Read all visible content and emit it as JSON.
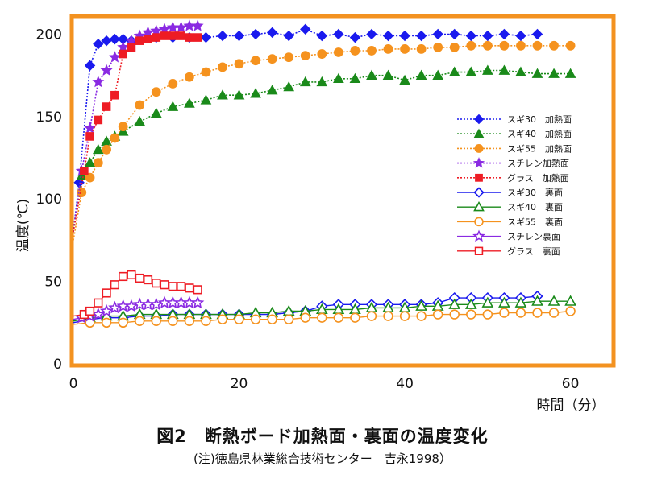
{
  "caption": {
    "title": "図2　断熱ボード加熱面・裏面の温度変化",
    "note": "(注)徳島県林業総合技術センター　吉永1998）"
  },
  "chart_data": {
    "type": "line",
    "xlabel": "時間（分）",
    "ylabel": "温度(℃)",
    "xlim": [
      0,
      65
    ],
    "ylim": [
      0,
      210
    ],
    "xticks": [
      0,
      20,
      40,
      60
    ],
    "yticks": [
      0,
      50,
      100,
      150,
      200
    ],
    "grid": false,
    "legend_position": "right",
    "series": [
      {
        "name": "スギ30　加熱面",
        "color": "#1a1aee",
        "marker": "diamond",
        "filled": true,
        "line": "dotted",
        "x": [
          0,
          0.7,
          2,
          3,
          4,
          5,
          6,
          7,
          8,
          10,
          12,
          14,
          16,
          18,
          20,
          22,
          24,
          26,
          28,
          30,
          32,
          34,
          36,
          38,
          40,
          42,
          44,
          46,
          48,
          50,
          52,
          54,
          56
        ],
        "y": [
          80,
          110,
          181,
          194,
          196,
          197,
          197,
          196,
          197,
          198,
          198,
          198,
          198,
          199,
          199,
          200,
          201,
          199,
          203,
          199,
          200,
          198,
          200,
          199,
          199,
          199,
          200,
          200,
          199,
          199,
          200,
          199,
          200
        ]
      },
      {
        "name": "スギ40　加熱面",
        "color": "#1a8a1a",
        "marker": "triangle",
        "filled": true,
        "line": "dotted",
        "x": [
          0,
          1,
          2,
          3,
          4,
          5,
          6,
          8,
          10,
          12,
          14,
          16,
          18,
          20,
          22,
          24,
          26,
          28,
          30,
          32,
          34,
          36,
          38,
          40,
          42,
          44,
          46,
          48,
          50,
          52,
          54,
          56,
          58,
          60
        ],
        "y": [
          80,
          114,
          122,
          130,
          135,
          138,
          141,
          147,
          152,
          156,
          158,
          160,
          163,
          163,
          164,
          166,
          168,
          171,
          171,
          173,
          173,
          175,
          175,
          172,
          175,
          175,
          177,
          177,
          178,
          178,
          177,
          176,
          176,
          176
        ]
      },
      {
        "name": "スギ55　加熱面",
        "color": "#f5921e",
        "marker": "circle",
        "filled": true,
        "line": "dotted",
        "x": [
          0,
          1,
          2,
          3,
          4,
          5,
          6,
          8,
          10,
          12,
          14,
          16,
          18,
          20,
          22,
          24,
          26,
          28,
          30,
          32,
          34,
          36,
          38,
          40,
          42,
          44,
          46,
          48,
          50,
          52,
          54,
          56,
          58,
          60
        ],
        "y": [
          75,
          104,
          113,
          122,
          130,
          137,
          144,
          157,
          165,
          170,
          174,
          177,
          180,
          182,
          184,
          185,
          186,
          187,
          188,
          189,
          190,
          190,
          191,
          191,
          191,
          192,
          192,
          193,
          193,
          193,
          193,
          193,
          193,
          193
        ]
      },
      {
        "name": "スチレン加熱面",
        "color": "#8a2ae2",
        "marker": "star",
        "filled": true,
        "line": "dotted",
        "x": [
          0,
          1,
          2,
          3,
          4,
          5,
          6,
          7,
          8,
          9,
          10,
          11,
          12,
          13,
          14,
          15
        ],
        "y": [
          80,
          117,
          143,
          171,
          178,
          186,
          192,
          196,
          199,
          201,
          202,
          203,
          204,
          204,
          205,
          205
        ]
      },
      {
        "name": "グラス　加熱面",
        "color": "#ee1c24",
        "marker": "square",
        "filled": true,
        "line": "dotted",
        "x": [
          0,
          1.3,
          2,
          3,
          4,
          5,
          6,
          7,
          8,
          9,
          10,
          11,
          12,
          13,
          14,
          15
        ],
        "y": [
          80,
          117,
          138,
          148,
          156,
          163,
          188,
          192,
          196,
          197,
          198,
          199,
          199,
          199,
          198,
          198
        ]
      },
      {
        "name": "スギ30　裏面",
        "color": "#1a1aee",
        "marker": "diamond",
        "filled": false,
        "line": "solid",
        "x": [
          0,
          2,
          4,
          6,
          8,
          10,
          12,
          14,
          16,
          18,
          20,
          22,
          24,
          26,
          28,
          30,
          32,
          34,
          36,
          38,
          40,
          42,
          44,
          46,
          48,
          50,
          52,
          54,
          56
        ],
        "y": [
          25,
          27,
          28,
          28,
          29,
          29,
          30,
          30,
          30,
          30,
          30,
          30,
          30,
          31,
          32,
          35,
          36,
          36,
          36,
          36,
          36,
          36,
          37,
          40,
          40,
          40,
          40,
          40,
          41
        ]
      },
      {
        "name": "スギ40　裏面",
        "color": "#1a8a1a",
        "marker": "triangle",
        "filled": false,
        "line": "solid",
        "x": [
          0,
          2,
          4,
          6,
          8,
          10,
          12,
          14,
          16,
          18,
          20,
          22,
          24,
          26,
          28,
          30,
          32,
          34,
          36,
          38,
          40,
          42,
          44,
          46,
          48,
          50,
          52,
          54,
          56,
          58,
          60
        ],
        "y": [
          26,
          28,
          29,
          29,
          30,
          30,
          30,
          30,
          30,
          30,
          30,
          31,
          31,
          32,
          32,
          33,
          33,
          33,
          34,
          34,
          34,
          35,
          35,
          36,
          36,
          37,
          37,
          37,
          38,
          38,
          38
        ]
      },
      {
        "name": "スギ55　裏面",
        "color": "#f5921e",
        "marker": "circle",
        "filled": false,
        "line": "solid",
        "x": [
          0,
          2,
          4,
          6,
          8,
          10,
          12,
          14,
          16,
          18,
          20,
          22,
          24,
          26,
          28,
          30,
          32,
          34,
          36,
          38,
          40,
          42,
          44,
          46,
          48,
          50,
          52,
          54,
          56,
          58,
          60
        ],
        "y": [
          24,
          25,
          25,
          25,
          26,
          26,
          26,
          26,
          26,
          27,
          27,
          27,
          27,
          27,
          28,
          28,
          28,
          28,
          29,
          29,
          29,
          29,
          30,
          30,
          30,
          30,
          31,
          31,
          31,
          31,
          32
        ]
      },
      {
        "name": "スチレン裏面",
        "color": "#8a2ae2",
        "marker": "star",
        "filled": false,
        "line": "solid",
        "x": [
          0,
          1,
          2,
          3,
          4,
          5,
          6,
          7,
          8,
          9,
          10,
          11,
          12,
          13,
          14,
          15
        ],
        "y": [
          27,
          28,
          29,
          30,
          32,
          34,
          35,
          35,
          36,
          36,
          36,
          37,
          37,
          37,
          37,
          37
        ]
      },
      {
        "name": "グラス　裏面",
        "color": "#ee1c24",
        "marker": "square",
        "filled": false,
        "line": "solid",
        "x": [
          0,
          1.3,
          2,
          3,
          4,
          5,
          6,
          7,
          8,
          9,
          10,
          11,
          12,
          13,
          14,
          15
        ],
        "y": [
          29,
          30,
          32,
          37,
          43,
          48,
          53,
          54,
          52,
          51,
          49,
          48,
          47,
          47,
          46,
          45
        ]
      }
    ]
  }
}
